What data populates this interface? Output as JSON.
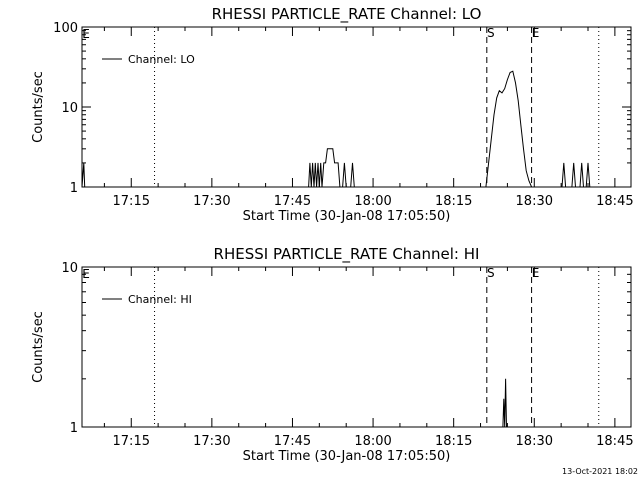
{
  "footer_text": "13-Oct-2021 18:02",
  "chart_data": [
    {
      "type": "line",
      "title": "RHESSI PARTICLE_RATE Channel: LO",
      "xlabel": "Start Time (30-Jan-08 17:05:50)",
      "ylabel": "Counts/sec",
      "y_scale": "log",
      "ylim": [
        1,
        100
      ],
      "yticks": [
        {
          "value": 1,
          "label": "1"
        },
        {
          "value": 10,
          "label": "10"
        },
        {
          "value": 100,
          "label": "100"
        }
      ],
      "xlim": [
        "17:05:50",
        "18:48:00"
      ],
      "xticks": [
        "17:15",
        "17:30",
        "17:45",
        "18:00",
        "18:15",
        "18:30",
        "18:45"
      ],
      "legend": {
        "label": "Channel: LO",
        "position": "top-left"
      },
      "vlines": [
        {
          "x": "17:19:20",
          "style": "dotted",
          "label": ""
        },
        {
          "x": "18:21:10",
          "style": "dashed",
          "label": "S"
        },
        {
          "x": "18:29:30",
          "style": "dashed",
          "label": "E"
        },
        {
          "x": "18:42:00",
          "style": "dotted",
          "label": ""
        }
      ],
      "edge_label": "E",
      "series": [
        {
          "name": "Channel: LO",
          "x": [
            "17:05:50",
            "17:06:10",
            "17:06:20",
            "17:06:30",
            "17:06:40",
            "17:48:00",
            "17:48:15",
            "17:48:30",
            "17:48:45",
            "17:49:00",
            "17:49:15",
            "17:49:30",
            "17:49:45",
            "17:50:00",
            "17:50:15",
            "17:50:30",
            "17:50:50",
            "17:51:10",
            "17:51:30",
            "17:51:50",
            "17:52:10",
            "17:52:30",
            "17:52:50",
            "17:53:10",
            "17:53:30",
            "17:53:50",
            "17:54:20",
            "17:54:40",
            "17:55:00",
            "17:55:50",
            "17:56:10",
            "17:56:30",
            "18:21:00",
            "18:21:30",
            "18:22:00",
            "18:22:30",
            "18:23:00",
            "18:23:30",
            "18:24:00",
            "18:24:30",
            "18:25:00",
            "18:25:30",
            "18:26:00",
            "18:26:30",
            "18:27:00",
            "18:27:30",
            "18:28:00",
            "18:28:30",
            "18:29:00",
            "18:29:30",
            "18:30:00",
            "18:35:10",
            "18:35:30",
            "18:35:50",
            "18:37:00",
            "18:37:20",
            "18:37:40",
            "18:38:30",
            "18:38:50",
            "18:39:10",
            "18:39:40",
            "18:40:00",
            "18:40:20"
          ],
          "y": [
            1,
            2,
            1,
            1,
            1,
            1,
            2,
            1,
            2,
            1,
            2,
            1,
            2,
            1,
            2,
            1,
            2,
            2,
            3,
            3,
            3,
            3,
            2,
            2,
            2,
            1,
            1,
            2,
            1,
            1,
            2,
            1,
            1,
            2,
            4,
            8,
            13,
            16,
            15,
            17,
            22,
            27,
            28,
            20,
            12,
            6,
            3,
            1.6,
            1.2,
            1,
            1,
            1,
            2,
            1,
            1,
            2,
            1,
            1,
            2,
            1,
            1,
            2,
            1
          ]
        }
      ]
    },
    {
      "type": "line",
      "title": "RHESSI PARTICLE_RATE Channel: HI",
      "xlabel": "Start Time (30-Jan-08 17:05:50)",
      "ylabel": "Counts/sec",
      "y_scale": "log",
      "ylim": [
        1,
        10
      ],
      "yticks": [
        {
          "value": 1,
          "label": "1"
        },
        {
          "value": 10,
          "label": "10"
        }
      ],
      "xlim": [
        "17:05:50",
        "18:48:00"
      ],
      "xticks": [
        "17:15",
        "17:30",
        "17:45",
        "18:00",
        "18:15",
        "18:30",
        "18:45"
      ],
      "legend": {
        "label": "Channel: HI",
        "position": "top-left"
      },
      "vlines": [
        {
          "x": "17:19:20",
          "style": "dotted",
          "label": ""
        },
        {
          "x": "18:21:10",
          "style": "dashed",
          "label": "S"
        },
        {
          "x": "18:29:30",
          "style": "dashed",
          "label": "E"
        },
        {
          "x": "18:42:00",
          "style": "dotted",
          "label": ""
        }
      ],
      "edge_label": "E",
      "series": [
        {
          "name": "Channel: HI",
          "x": [
            "18:24:10",
            "18:24:20",
            "18:24:30",
            "18:24:40",
            "18:24:50"
          ],
          "y": [
            1,
            1.5,
            1,
            2,
            1
          ]
        }
      ]
    }
  ]
}
